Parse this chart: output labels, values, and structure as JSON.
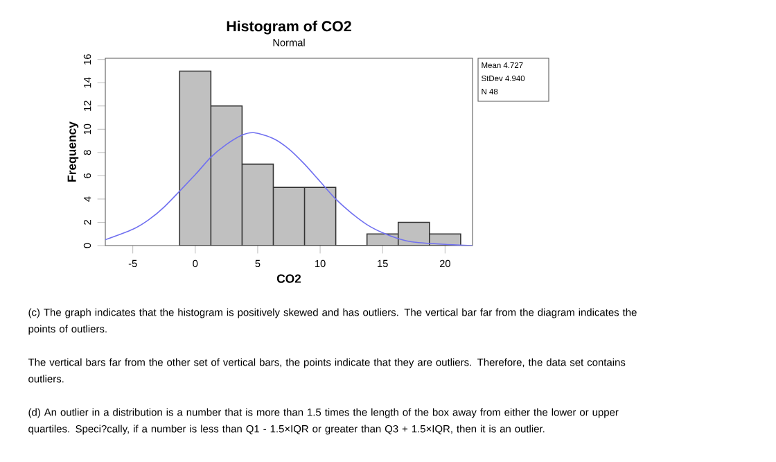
{
  "chart_data": {
    "type": "histogram",
    "title": "Histogram of CO2",
    "subtitle": "Normal",
    "xlabel": "CO2",
    "ylabel": "Frequency",
    "xlim": [
      -7.2,
      22.2
    ],
    "ylim": [
      0,
      16.1
    ],
    "xticks": [
      -5,
      0,
      5,
      10,
      15,
      20
    ],
    "yticks": [
      0,
      2,
      4,
      6,
      8,
      10,
      12,
      14,
      16
    ],
    "grid": false,
    "series": [
      {
        "color": "#c0c0c0",
        "bins": [
          -1.25,
          1.25,
          3.75,
          6.25,
          8.75,
          11.25,
          13.75,
          16.25,
          18.75,
          21.25
        ],
        "values": [
          15,
          12,
          7,
          5,
          5,
          0,
          1,
          2,
          1
        ]
      },
      {
        "type": "line",
        "color": "#7070f0",
        "x": [
          -7.2,
          -5,
          -3.75,
          -2.5,
          0,
          1.25,
          2.5,
          3.75,
          4.7,
          6.25,
          7.5,
          8.75,
          10,
          11.25,
          12.5,
          13.75,
          15,
          16.25,
          17.5,
          20,
          22.2
        ],
        "values": [
          0.5,
          1.4,
          2.2,
          3.3,
          6.1,
          7.6,
          8.7,
          9.5,
          9.7,
          9.2,
          8.3,
          7.0,
          5.5,
          4.0,
          2.8,
          1.8,
          1.1,
          0.6,
          0.3,
          0.1,
          0
        ]
      }
    ],
    "annotations": [
      "Mean 4.727",
      "StDev 4.940",
      "N 48",
      "(c) The graph indicates that the histogram is positively skewed and has outliers. The vertical bar far from the diagram indicates the points of outliers.",
      "The vertical bars far from the other set of vertical bars, the points indicate that they are outliers. Therefore, the data set contains outliers.",
      "(d) An outlier in a distribution is a number that is more than 1.5 times the length of the box away from either the lower or upper quartiles. Speci?cally, if a number is less than Q1 - 1.5×IQR or greater than Q3 + 1.5×IQR, then it is an outlier."
    ]
  }
}
